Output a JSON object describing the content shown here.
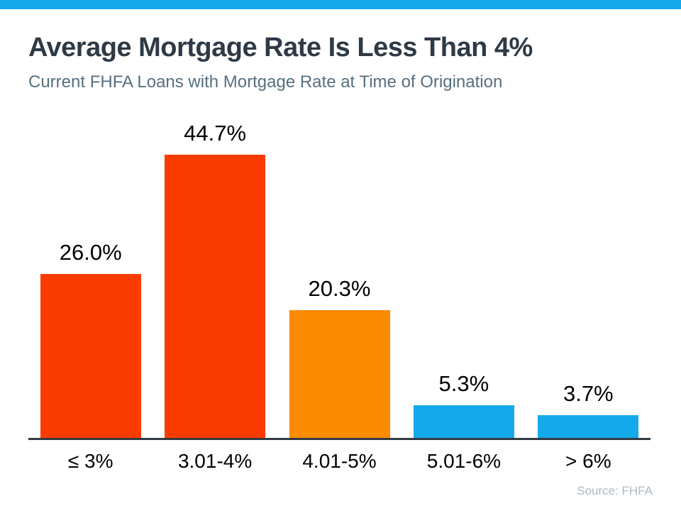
{
  "page": {
    "title": "Average Mortgage Rate Is Less Than 4%",
    "subtitle": "Current FHFA Loans with Mortgage Rate at Time of Origination",
    "source": "Source: FHFA"
  },
  "colors": {
    "top_strip": "#16A9EA",
    "title_text": "#2E3A45",
    "subtitle_text": "#55707E",
    "axis_line": "#333B42",
    "label_text": "#000000",
    "source_text": "#AEB9C1",
    "red_bar": "#FB3C02",
    "orange_bar": "#FB8B00",
    "blue_bar": "#16A9EA"
  },
  "chart_data": {
    "type": "bar",
    "title": "Average Mortgage Rate Is Less Than 4%",
    "subtitle": "Current FHFA Loans with Mortgage Rate at Time of Origination",
    "categories": [
      "≤ 3%",
      "3.01-4%",
      "4.01-5%",
      "5.01-6%",
      "> 6%"
    ],
    "values": [
      26.0,
      44.7,
      20.3,
      5.3,
      3.7
    ],
    "value_labels": [
      "26.0%",
      "44.7%",
      "20.3%",
      "5.3%",
      "3.7%"
    ],
    "bar_colors": [
      "#FB3C02",
      "#FB3C02",
      "#FB8B00",
      "#16A9EA",
      "#16A9EA"
    ],
    "xlabel": "",
    "ylabel": "",
    "unit": "%",
    "ylim": [
      0,
      50
    ],
    "grid": false,
    "legend": false,
    "source": "Source: FHFA"
  }
}
